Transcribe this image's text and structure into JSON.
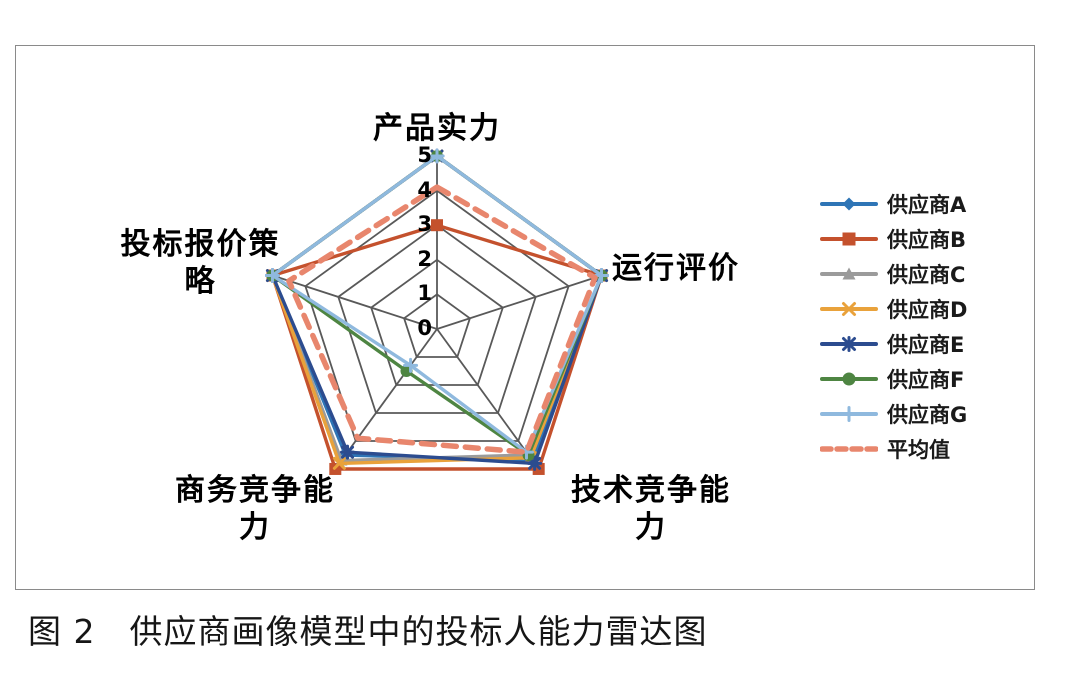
{
  "figure": {
    "caption": "图 2　供应商画像模型中的投标人能力雷达图"
  },
  "chart_data": {
    "type": "radar",
    "title": "",
    "categories": [
      "产品实力",
      "运行评价",
      "技术竞争能力",
      "商务竞争能力",
      "投标报价策略"
    ],
    "axis_labels_display": [
      "产品实力",
      "运行评价",
      "技术竞争能\n力",
      "商务竞争能\n力",
      "投标报价策\n略"
    ],
    "rmin": 0,
    "rmax": 5,
    "ticks": [
      "0",
      "1",
      "2",
      "3",
      "4",
      "5"
    ],
    "grid": true,
    "grid_color": "#595959",
    "legend_position": "right",
    "series": [
      {
        "name": "供应商A",
        "color": "#2E75B6",
        "marker": "diamond",
        "dashed": false,
        "values": [
          5,
          5,
          4.7,
          4.5,
          5
        ]
      },
      {
        "name": "供应商B",
        "color": "#C4512D",
        "marker": "square",
        "dashed": false,
        "values": [
          3,
          5,
          5,
          5,
          5
        ]
      },
      {
        "name": "供应商C",
        "color": "#9B9B9B",
        "marker": "triangle",
        "dashed": false,
        "values": [
          5,
          5,
          4.5,
          4.7,
          5
        ]
      },
      {
        "name": "供应商D",
        "color": "#E9A23B",
        "marker": "x",
        "dashed": false,
        "values": [
          5,
          5,
          4.6,
          4.8,
          5
        ]
      },
      {
        "name": "供应商E",
        "color": "#2C4C8F",
        "marker": "asterisk",
        "dashed": false,
        "values": [
          5,
          5,
          4.8,
          4.4,
          5
        ]
      },
      {
        "name": "供应商F",
        "color": "#4E8542",
        "marker": "circle",
        "dashed": false,
        "values": [
          5,
          5,
          4.5,
          1.5,
          5
        ]
      },
      {
        "name": "供应商G",
        "color": "#8FB9DE",
        "marker": "plus",
        "dashed": false,
        "values": [
          5,
          5,
          4.4,
          1.3,
          5
        ]
      },
      {
        "name": "平均值",
        "color": "#E8866D",
        "marker": "none",
        "dashed": true,
        "values": [
          4.1,
          4.8,
          4.4,
          3.9,
          4.5
        ]
      }
    ]
  }
}
